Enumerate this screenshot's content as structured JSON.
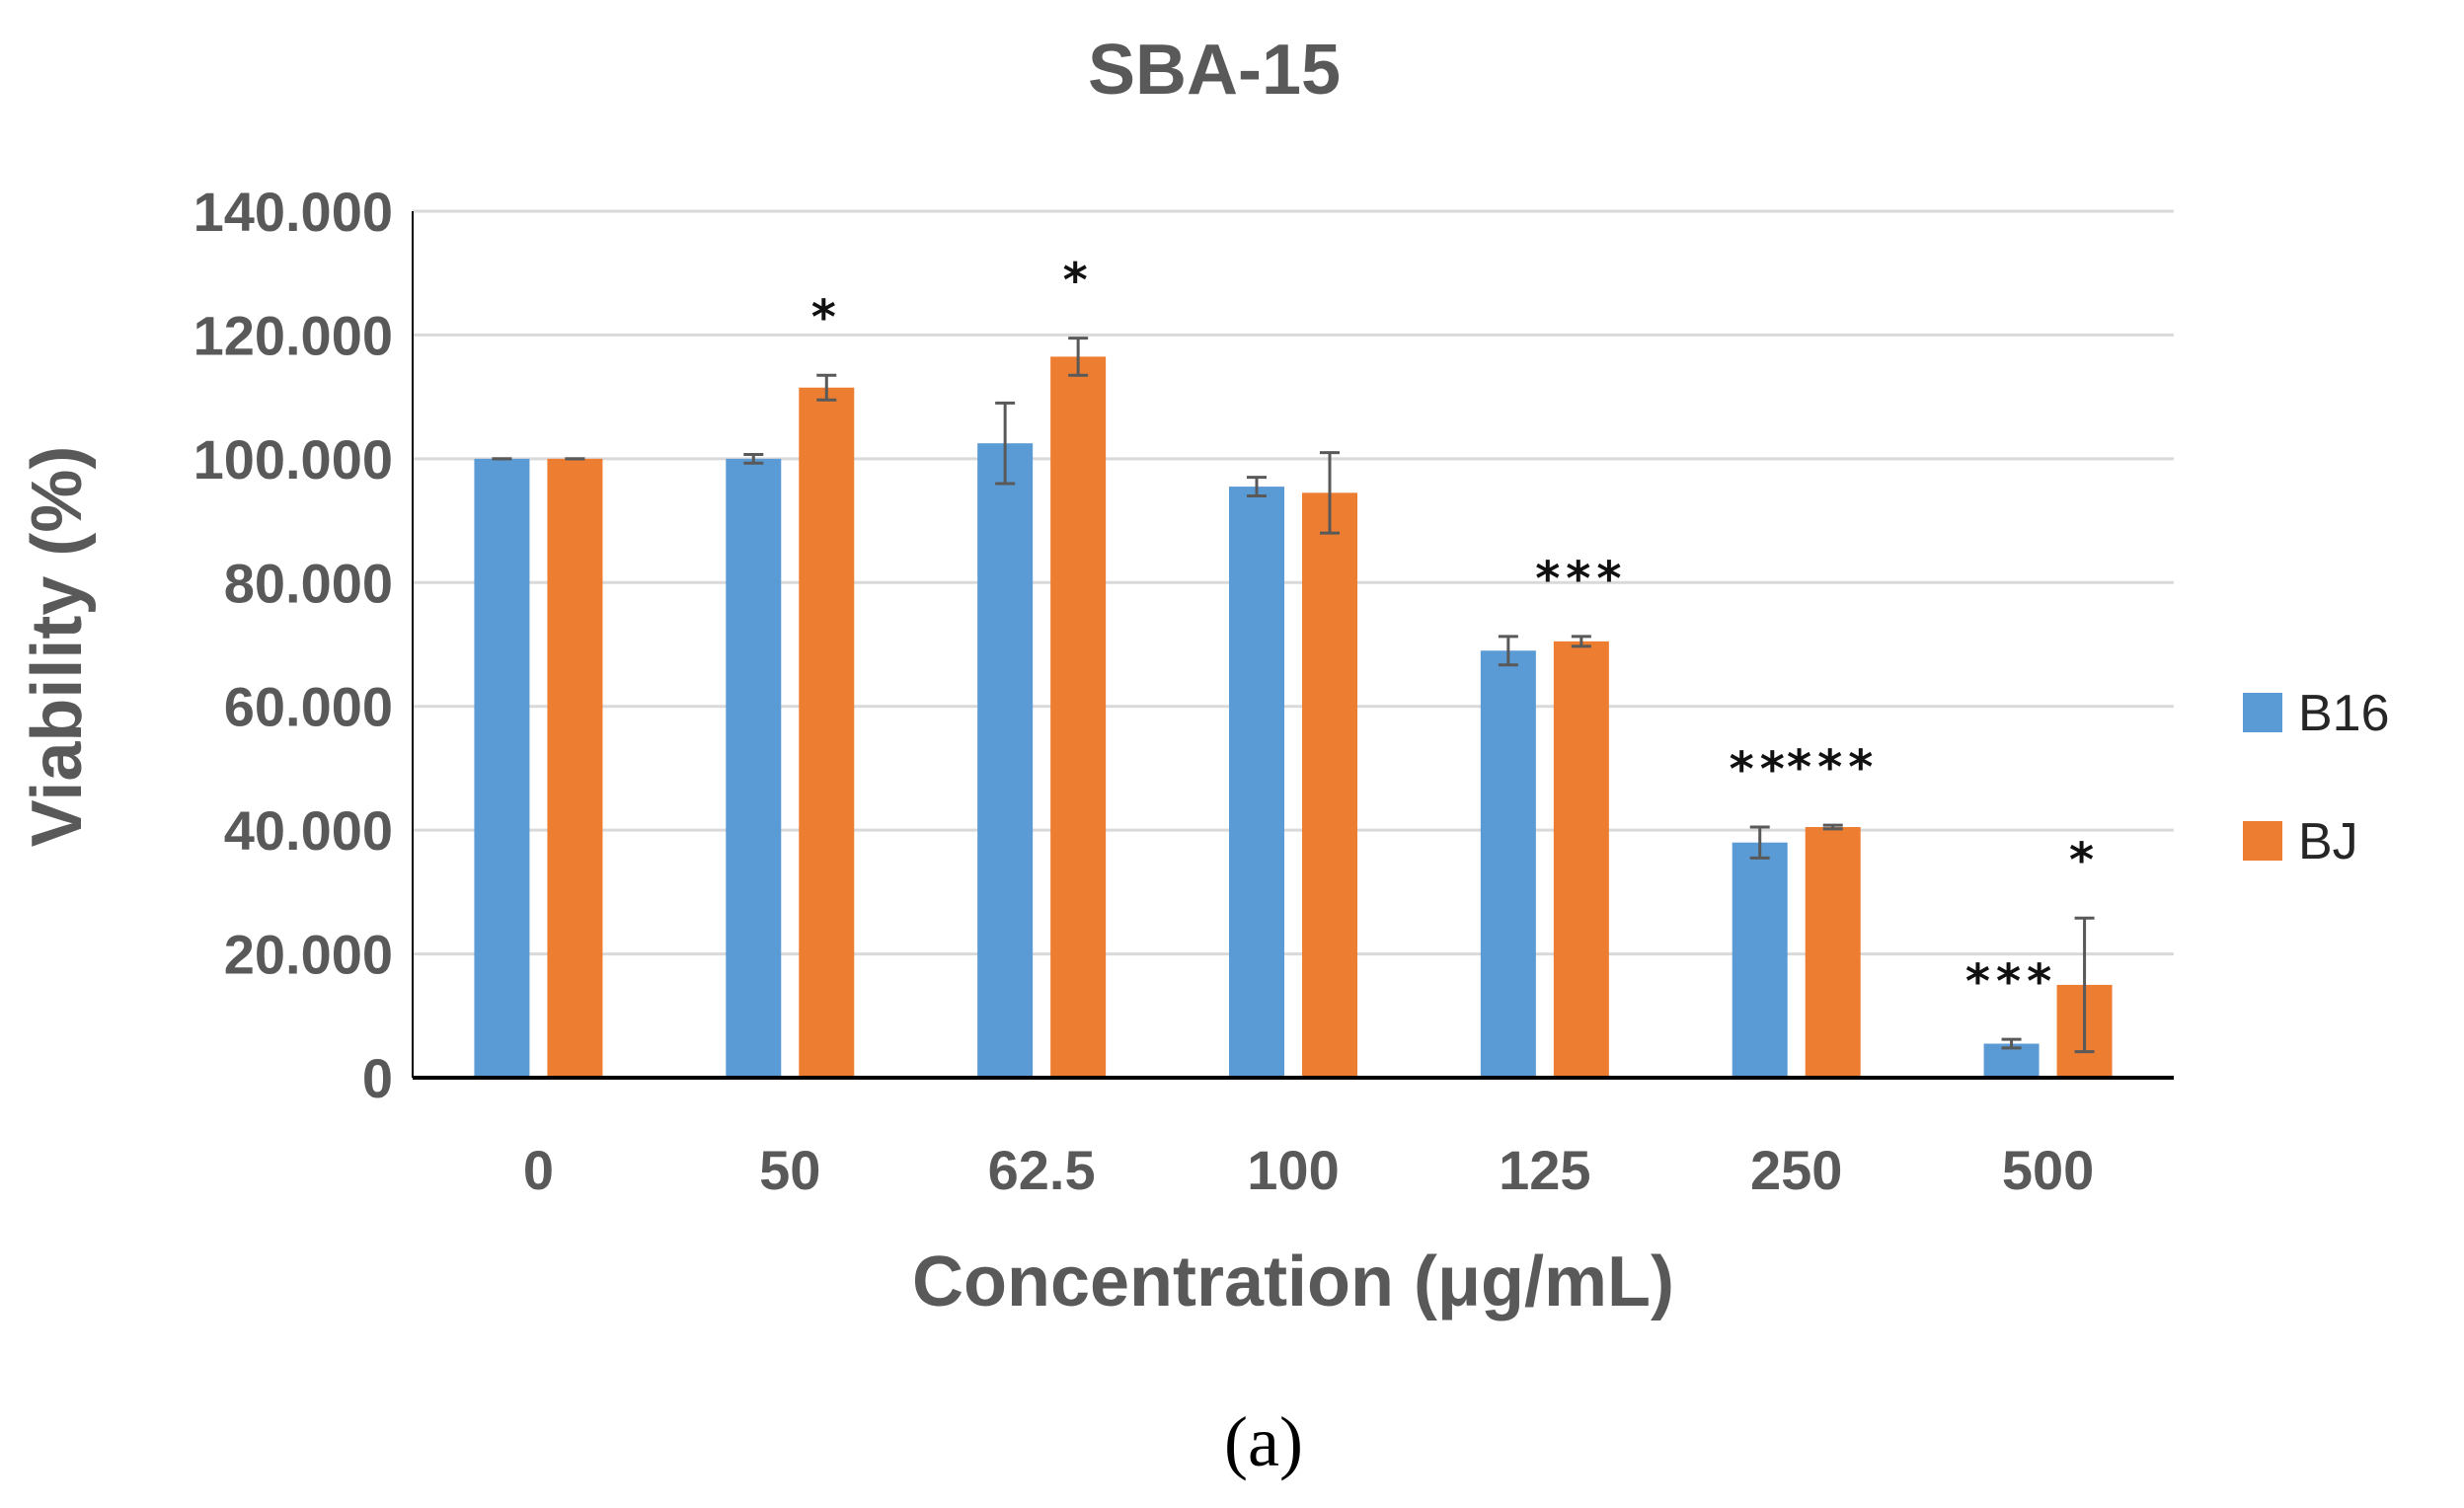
{
  "chart_data": {
    "type": "bar",
    "title": "SBA-15",
    "xlabel": "Concentration (μg/mL)",
    "ylabel": "Viability (%)",
    "ylim": [
      0,
      140
    ],
    "yticks": [
      0,
      20,
      40,
      60,
      80,
      100,
      120,
      140
    ],
    "ytick_labels": [
      "0",
      "20.000",
      "40.000",
      "60.000",
      "80.000",
      "100.000",
      "120.000",
      "140.000"
    ],
    "grid": true,
    "legend_position": "right",
    "categories": [
      "0",
      "50",
      "62.5",
      "100",
      "125",
      "250",
      "500"
    ],
    "series": [
      {
        "name": "B16",
        "color": "#5B9BD5",
        "values": [
          100,
          100,
          102.5,
          95.5,
          69,
          38,
          5.5
        ],
        "errors": [
          0,
          0.7,
          6.5,
          1.5,
          2.3,
          2.5,
          0.7
        ],
        "significance": [
          "",
          "",
          "",
          "",
          "",
          "**",
          "***"
        ]
      },
      {
        "name": "BJ",
        "color": "#ED7D31",
        "values": [
          100,
          111.5,
          116.5,
          94.5,
          70.5,
          40.5,
          15
        ],
        "errors": [
          0,
          2,
          3,
          6.5,
          0.8,
          0.3,
          10.8
        ],
        "significance": [
          "",
          "*",
          "*",
          "",
          "***",
          "***",
          "*"
        ]
      }
    ],
    "caption": "(a)"
  }
}
